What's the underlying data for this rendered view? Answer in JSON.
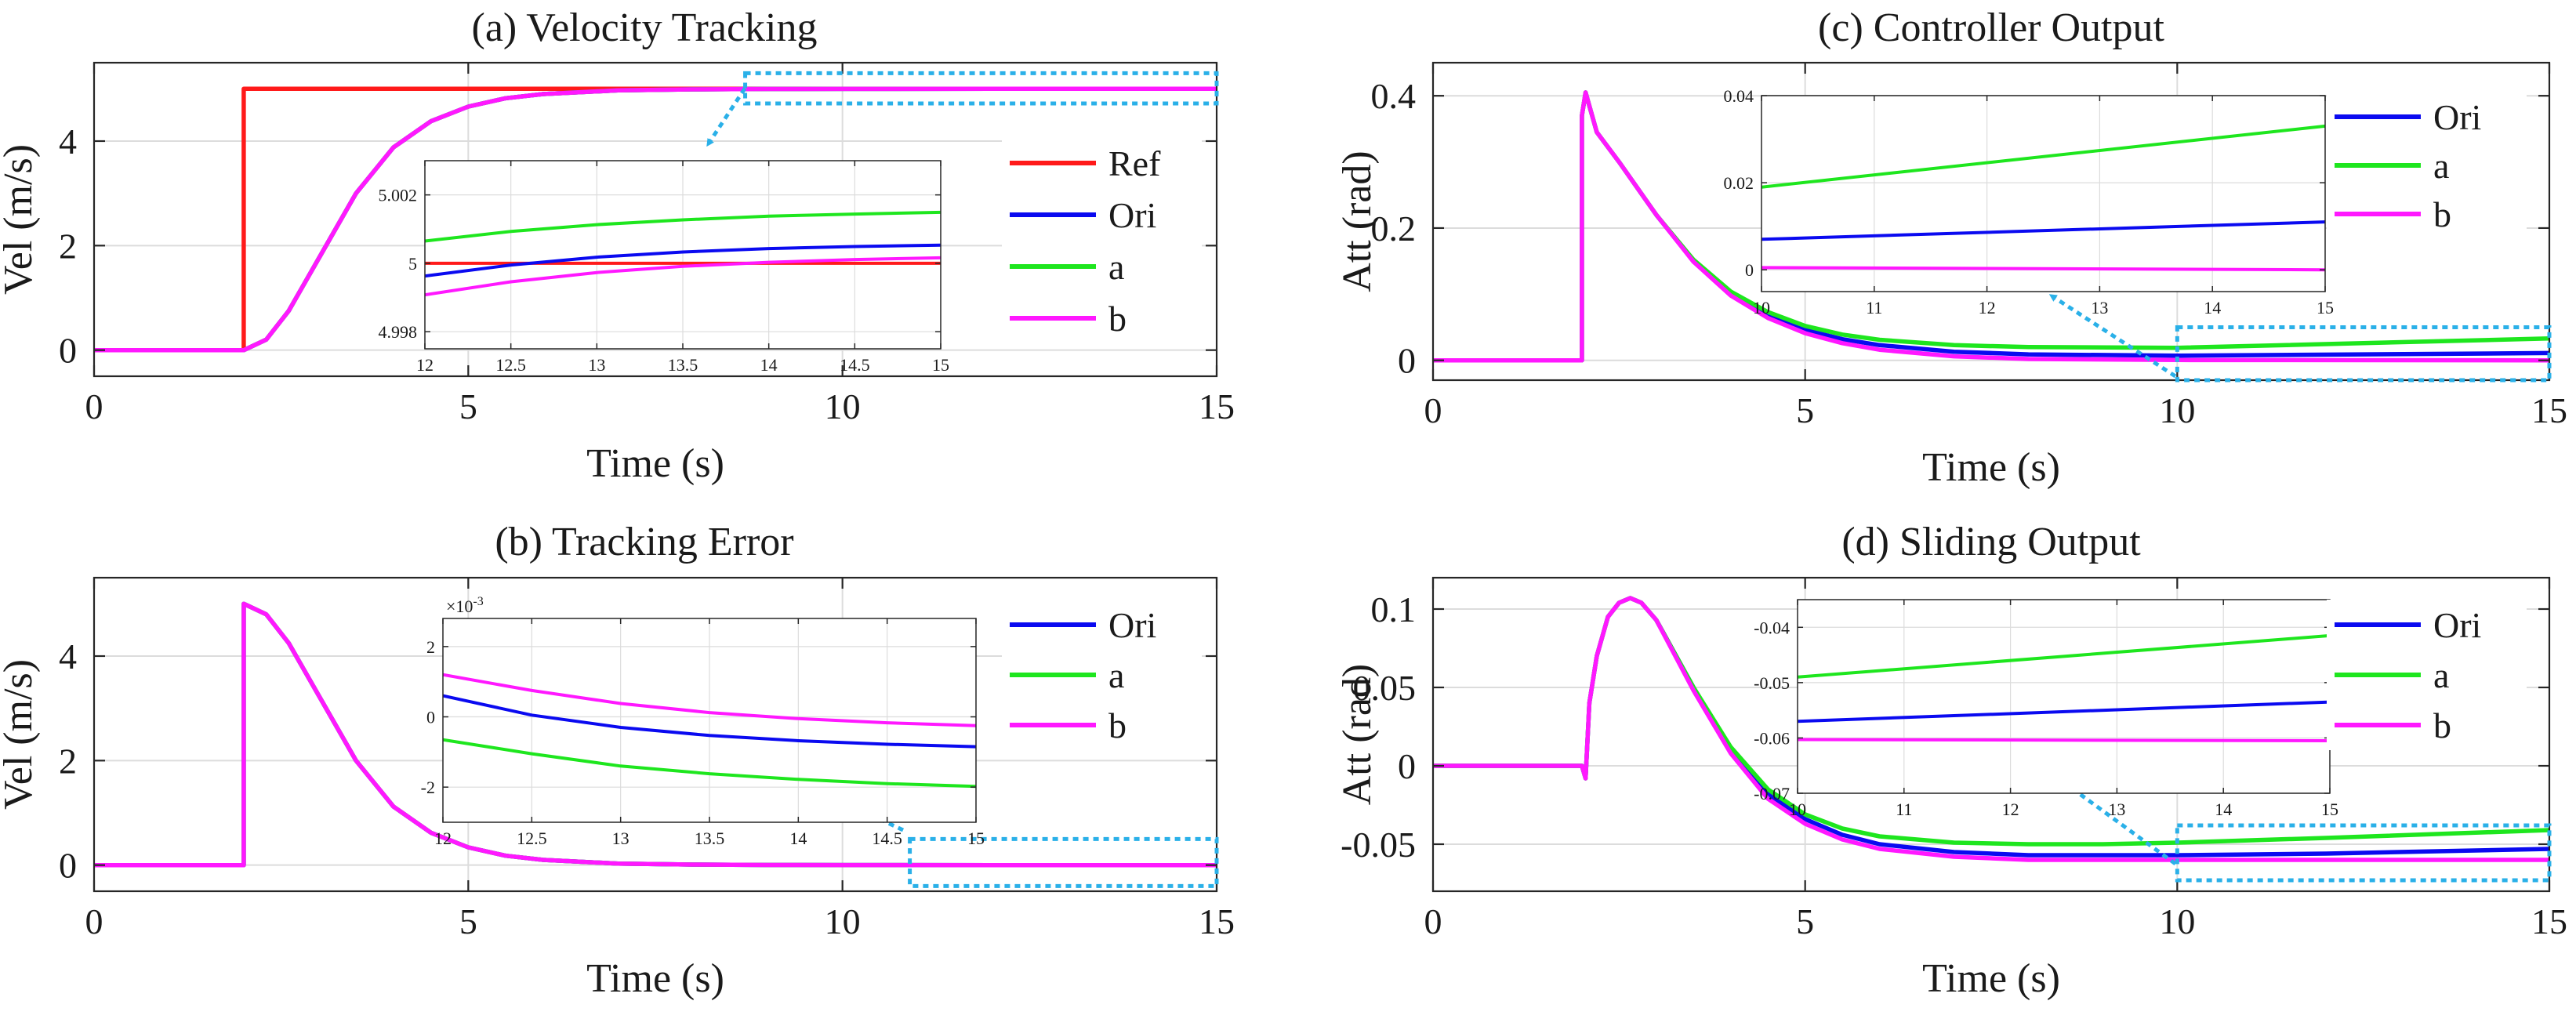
{
  "chart_data": [
    {
      "panel": "a",
      "type": "line",
      "title": "(a) Velocity Tracking",
      "xlabel": "Time (s)",
      "ylabel": "Vel (m/s)",
      "xlim": [
        0,
        15
      ],
      "ylim": [
        -0.5,
        5.5
      ],
      "xticks": [
        0,
        5,
        10,
        15
      ],
      "yticks": [
        0,
        2,
        4
      ],
      "grid": true,
      "legend_position": "right",
      "legend": [
        "Ref",
        "Ori",
        "a",
        "b"
      ],
      "series": [
        {
          "name": "Ref",
          "color": "#ff1a1a",
          "x": [
            0,
            2,
            2,
            15
          ],
          "y": [
            0,
            0,
            5,
            5
          ]
        },
        {
          "name": "Ori",
          "color": "#0a0af0",
          "x": [
            0,
            2,
            2.3,
            2.6,
            3,
            3.5,
            4,
            4.5,
            5,
            5.5,
            6,
            7,
            8,
            9,
            10,
            12,
            15
          ],
          "y": [
            0,
            0,
            0.2,
            0.75,
            1.75,
            3.0,
            3.88,
            4.38,
            4.66,
            4.82,
            4.9,
            4.97,
            4.99,
            4.997,
            4.999,
            5.0,
            5.0
          ]
        },
        {
          "name": "a",
          "color": "#1ee61e",
          "x": [
            0,
            2,
            2.3,
            2.6,
            3,
            3.5,
            4,
            4.5,
            5,
            5.5,
            6,
            7,
            8,
            9,
            10,
            12,
            15
          ],
          "y": [
            0,
            0,
            0.2,
            0.75,
            1.75,
            3.0,
            3.88,
            4.38,
            4.66,
            4.82,
            4.9,
            4.97,
            4.99,
            4.997,
            4.999,
            5.0,
            5.0
          ]
        },
        {
          "name": "b",
          "color": "#ff18ff",
          "x": [
            0,
            2,
            2.3,
            2.6,
            3,
            3.5,
            4,
            4.5,
            5,
            5.5,
            6,
            7,
            8,
            9,
            10,
            12,
            15
          ],
          "y": [
            0,
            0,
            0.2,
            0.75,
            1.75,
            3.0,
            3.88,
            4.38,
            4.66,
            4.82,
            4.9,
            4.97,
            4.99,
            4.997,
            4.999,
            5.0,
            5.0
          ]
        }
      ],
      "zoom_box": {
        "xlim": [
          8.7,
          15
        ],
        "ylim": [
          4.72,
          5.3
        ]
      },
      "inset": {
        "xlim": [
          12,
          15
        ],
        "ylim": [
          4.9975,
          5.003
        ],
        "xticks": [
          12,
          12.5,
          13,
          13.5,
          14,
          14.5,
          15
        ],
        "yticks": [
          4.998,
          5,
          5.002
        ],
        "ytick_labels": [
          "4.998",
          "5",
          "5.002"
        ],
        "series": [
          {
            "name": "Ref",
            "color": "#ff1a1a",
            "x": [
              12,
              15
            ],
            "y": [
              5.0,
              5.0
            ]
          },
          {
            "name": "Ori",
            "color": "#0a0af0",
            "x": [
              12,
              12.5,
              13,
              13.5,
              14,
              14.5,
              15
            ],
            "y": [
              4.99963,
              4.99995,
              5.00018,
              5.00033,
              5.00043,
              5.00049,
              5.00053
            ]
          },
          {
            "name": "a",
            "color": "#1ee61e",
            "x": [
              12,
              12.5,
              13,
              13.5,
              14,
              14.5,
              15
            ],
            "y": [
              5.00065,
              5.00093,
              5.00113,
              5.00127,
              5.00138,
              5.00144,
              5.00149
            ]
          },
          {
            "name": "b",
            "color": "#ff18ff",
            "x": [
              12,
              12.5,
              13,
              13.5,
              14,
              14.5,
              15
            ],
            "y": [
              4.99908,
              4.99946,
              4.99973,
              4.99991,
              5.00003,
              5.00011,
              5.00016
            ]
          }
        ]
      }
    },
    {
      "panel": "b",
      "type": "line",
      "title": "(b) Tracking Error",
      "xlabel": "Time (s)",
      "ylabel": "Vel (m/s)",
      "xlim": [
        0,
        15
      ],
      "ylim": [
        -0.5,
        5.5
      ],
      "xticks": [
        0,
        5,
        10,
        15
      ],
      "yticks": [
        0,
        2,
        4
      ],
      "grid": true,
      "legend_position": "right",
      "legend": [
        "Ori",
        "a",
        "b"
      ],
      "series": [
        {
          "name": "Ori",
          "color": "#0a0af0",
          "x": [
            0,
            2,
            2,
            2.3,
            2.6,
            3,
            3.5,
            4,
            4.5,
            5,
            5.5,
            6,
            7,
            8,
            9,
            10,
            12,
            15
          ],
          "y": [
            0,
            0,
            5,
            4.8,
            4.25,
            3.25,
            2.0,
            1.12,
            0.62,
            0.34,
            0.18,
            0.1,
            0.03,
            0.01,
            0.003,
            0.001,
            0,
            0
          ]
        },
        {
          "name": "a",
          "color": "#1ee61e",
          "x": [
            0,
            2,
            2,
            2.3,
            2.6,
            3,
            3.5,
            4,
            4.5,
            5,
            5.5,
            6,
            7,
            8,
            9,
            10,
            12,
            15
          ],
          "y": [
            0,
            0,
            5,
            4.8,
            4.25,
            3.25,
            2.0,
            1.12,
            0.62,
            0.34,
            0.18,
            0.1,
            0.03,
            0.01,
            0.003,
            0.001,
            0,
            0
          ]
        },
        {
          "name": "b",
          "color": "#ff18ff",
          "x": [
            0,
            2,
            2,
            2.3,
            2.6,
            3,
            3.5,
            4,
            4.5,
            5,
            5.5,
            6,
            7,
            8,
            9,
            10,
            12,
            15
          ],
          "y": [
            0,
            0,
            5,
            4.8,
            4.25,
            3.25,
            2.0,
            1.12,
            0.62,
            0.34,
            0.18,
            0.1,
            0.03,
            0.01,
            0.003,
            0.001,
            0,
            0
          ]
        }
      ],
      "zoom_box": {
        "xlim": [
          10.9,
          15
        ],
        "ylim": [
          -0.4,
          0.5
        ]
      },
      "inset": {
        "xlim": [
          12,
          15
        ],
        "ylim": [
          -3,
          2.8
        ],
        "xticks": [
          12,
          12.5,
          13,
          13.5,
          14,
          14.5,
          15
        ],
        "yticks": [
          -2,
          0,
          2
        ],
        "ytick_labels": [
          "-2",
          "0",
          "2"
        ],
        "exponent_label": "×10",
        "exponent_power": "-3",
        "series": [
          {
            "name": "Ori",
            "color": "#0a0af0",
            "x": [
              12,
              12.5,
              13,
              13.5,
              14,
              14.5,
              15
            ],
            "y": [
              0.6,
              0.05,
              -0.3,
              -0.53,
              -0.68,
              -0.78,
              -0.85
            ]
          },
          {
            "name": "a",
            "color": "#1ee61e",
            "x": [
              12,
              12.5,
              13,
              13.5,
              14,
              14.5,
              15
            ],
            "y": [
              -0.65,
              -1.05,
              -1.4,
              -1.62,
              -1.78,
              -1.9,
              -1.98
            ]
          },
          {
            "name": "b",
            "color": "#ff18ff",
            "x": [
              12,
              12.5,
              13,
              13.5,
              14,
              14.5,
              15
            ],
            "y": [
              1.2,
              0.75,
              0.38,
              0.12,
              -0.05,
              -0.17,
              -0.25
            ]
          }
        ]
      }
    },
    {
      "panel": "c",
      "type": "line",
      "title": "(c) Controller Output",
      "xlabel": "Time (s)",
      "ylabel": "Att (rad)",
      "xlim": [
        0,
        15
      ],
      "ylim": [
        -0.03,
        0.45
      ],
      "xticks": [
        0,
        5,
        10,
        15
      ],
      "yticks": [
        0,
        0.2,
        0.4
      ],
      "ytick_labels": [
        "0",
        "0.2",
        "0.4"
      ],
      "grid": true,
      "legend_position": "right",
      "legend": [
        "Ori",
        "a",
        "b"
      ],
      "series": [
        {
          "name": "Ori",
          "color": "#0a0af0",
          "x": [
            0,
            2,
            2,
            2.05,
            2.2,
            2.5,
            3,
            3.5,
            4,
            4.5,
            5,
            5.5,
            6,
            7,
            8,
            10,
            15
          ],
          "y": [
            0,
            0,
            0.37,
            0.405,
            0.345,
            0.3,
            0.22,
            0.15,
            0.1,
            0.068,
            0.046,
            0.032,
            0.023,
            0.013,
            0.009,
            0.007,
            0.011
          ]
        },
        {
          "name": "a",
          "color": "#1ee61e",
          "x": [
            0,
            2,
            2,
            2.05,
            2.2,
            2.5,
            3,
            3.5,
            4,
            4.5,
            5,
            5.5,
            6,
            7,
            8,
            10,
            15
          ],
          "y": [
            0,
            0,
            0.37,
            0.405,
            0.345,
            0.3,
            0.22,
            0.152,
            0.104,
            0.073,
            0.052,
            0.039,
            0.031,
            0.023,
            0.02,
            0.019,
            0.033
          ]
        },
        {
          "name": "b",
          "color": "#ff18ff",
          "x": [
            0,
            2,
            2,
            2.05,
            2.2,
            2.5,
            3,
            3.5,
            4,
            4.5,
            5,
            5.5,
            6,
            7,
            8,
            10,
            15
          ],
          "y": [
            0,
            0,
            0.37,
            0.405,
            0.345,
            0.3,
            0.22,
            0.149,
            0.098,
            0.064,
            0.041,
            0.026,
            0.016,
            0.006,
            0.002,
            0.0005,
            0
          ]
        }
      ],
      "zoom_box": {
        "xlim": [
          10,
          15
        ],
        "ylim": [
          -0.03,
          0.05
        ]
      },
      "inset": {
        "xlim": [
          10,
          15
        ],
        "ylim": [
          -0.005,
          0.04
        ],
        "xticks": [
          10,
          11,
          12,
          13,
          14,
          15
        ],
        "yticks": [
          0,
          0.02,
          0.04
        ],
        "ytick_labels": [
          "0",
          "0.02",
          "0.04"
        ],
        "series": [
          {
            "name": "Ori",
            "color": "#0a0af0",
            "x": [
              10,
              15
            ],
            "y": [
              0.007,
              0.011
            ]
          },
          {
            "name": "a",
            "color": "#1ee61e",
            "x": [
              10,
              15
            ],
            "y": [
              0.019,
              0.033
            ]
          },
          {
            "name": "b",
            "color": "#ff18ff",
            "x": [
              10,
              15
            ],
            "y": [
              0.0005,
              0.0
            ]
          }
        ]
      }
    },
    {
      "panel": "d",
      "type": "line",
      "title": "(d) Sliding Output",
      "xlabel": "Time (s)",
      "ylabel": "Att (rad)",
      "xlim": [
        0,
        15
      ],
      "ylim": [
        -0.08,
        0.12
      ],
      "xticks": [
        0,
        5,
        10,
        15
      ],
      "yticks": [
        -0.05,
        0,
        0.05,
        0.1
      ],
      "ytick_labels": [
        "-0.05",
        "0",
        "0.05",
        "0.1"
      ],
      "grid": true,
      "legend_position": "right",
      "legend": [
        "Ori",
        "a",
        "b"
      ],
      "series": [
        {
          "name": "Ori",
          "color": "#0a0af0",
          "x": [
            0,
            2,
            2.05,
            2.1,
            2.2,
            2.35,
            2.5,
            2.65,
            2.8,
            3,
            3.5,
            4,
            4.5,
            5,
            5.5,
            6,
            7,
            8,
            9,
            10,
            12,
            15
          ],
          "y": [
            0,
            0,
            -0.008,
            0.04,
            0.07,
            0.095,
            0.104,
            0.107,
            0.104,
            0.093,
            0.05,
            0.01,
            -0.018,
            -0.034,
            -0.044,
            -0.05,
            -0.055,
            -0.057,
            -0.057,
            -0.057,
            -0.056,
            -0.053
          ]
        },
        {
          "name": "a",
          "color": "#1ee61e",
          "x": [
            0,
            2,
            2.05,
            2.1,
            2.2,
            2.35,
            2.5,
            2.65,
            2.8,
            3,
            3.5,
            4,
            4.5,
            5,
            5.5,
            6,
            7,
            8,
            9,
            10,
            12,
            15
          ],
          "y": [
            0,
            0,
            -0.008,
            0.04,
            0.07,
            0.095,
            0.104,
            0.107,
            0.104,
            0.093,
            0.05,
            0.012,
            -0.015,
            -0.031,
            -0.04,
            -0.045,
            -0.049,
            -0.05,
            -0.05,
            -0.049,
            -0.046,
            -0.041
          ]
        },
        {
          "name": "b",
          "color": "#ff18ff",
          "x": [
            0,
            2,
            2.05,
            2.1,
            2.2,
            2.35,
            2.5,
            2.65,
            2.8,
            3,
            3.5,
            4,
            4.5,
            5,
            5.5,
            6,
            7,
            8,
            9,
            10,
            12,
            15
          ],
          "y": [
            0,
            0,
            -0.008,
            0.04,
            0.07,
            0.095,
            0.104,
            0.107,
            0.104,
            0.093,
            0.048,
            0.008,
            -0.021,
            -0.037,
            -0.047,
            -0.053,
            -0.058,
            -0.06,
            -0.06,
            -0.06,
            -0.06,
            -0.06
          ]
        }
      ],
      "zoom_box": {
        "xlim": [
          10,
          15
        ],
        "ylim": [
          -0.073,
          -0.038
        ]
      },
      "inset": {
        "xlim": [
          10,
          15
        ],
        "ylim": [
          -0.07,
          -0.035
        ],
        "xticks": [
          10,
          11,
          12,
          13,
          14,
          15
        ],
        "yticks": [
          -0.07,
          -0.06,
          -0.05,
          -0.04
        ],
        "ytick_labels": [
          "-0.07",
          "-0.06",
          "-0.05",
          "-0.04"
        ],
        "series": [
          {
            "name": "Ori",
            "color": "#0a0af0",
            "x": [
              10,
              15
            ],
            "y": [
              -0.057,
              -0.0535
            ]
          },
          {
            "name": "a",
            "color": "#1ee61e",
            "x": [
              10,
              15
            ],
            "y": [
              -0.049,
              -0.0415
            ]
          },
          {
            "name": "b",
            "color": "#ff18ff",
            "x": [
              10,
              15
            ],
            "y": [
              -0.0603,
              -0.0605
            ]
          }
        ]
      }
    }
  ]
}
